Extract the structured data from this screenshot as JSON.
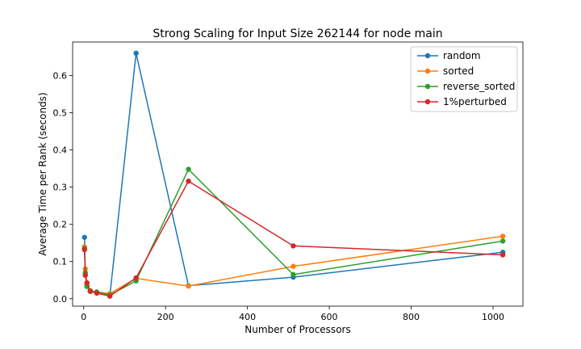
{
  "chart_data": {
    "type": "line",
    "title": "Strong Scaling for Input Size 262144 for node main",
    "xlabel": "Number of Processors",
    "ylabel": "Average Time per Rank (seconds)",
    "xlim": [
      -27,
      1073
    ],
    "ylim": [
      -0.02,
      0.69
    ],
    "xticks": [
      0,
      200,
      400,
      600,
      800,
      1000
    ],
    "yticks": [
      0.0,
      0.1,
      0.2,
      0.3,
      0.4,
      0.5,
      0.6
    ],
    "grid": false,
    "legend_position": "top-right",
    "series": [
      {
        "name": "random",
        "color": "#1f77b4",
        "x": [
          2,
          4,
          8,
          16,
          32,
          64,
          128,
          256,
          512,
          1024
        ],
        "y": [
          0.165,
          0.065,
          0.035,
          0.022,
          0.017,
          0.008,
          0.66,
          0.035,
          0.058,
          0.125
        ]
      },
      {
        "name": "sorted",
        "color": "#ff7f0e",
        "x": [
          2,
          4,
          8,
          16,
          32,
          64,
          128,
          256,
          512,
          1024
        ],
        "y": [
          0.14,
          0.08,
          0.04,
          0.022,
          0.018,
          0.014,
          0.055,
          0.034,
          0.087,
          0.168
        ]
      },
      {
        "name": "reverse_sorted",
        "color": "#2ca02c",
        "x": [
          2,
          4,
          8,
          16,
          32,
          64,
          128,
          256,
          512,
          1024
        ],
        "y": [
          0.135,
          0.07,
          0.033,
          0.02,
          0.018,
          0.01,
          0.048,
          0.348,
          0.065,
          0.155
        ]
      },
      {
        "name": "1%perturbed",
        "color": "#d62728",
        "x": [
          2,
          4,
          8,
          16,
          32,
          64,
          128,
          256,
          512,
          1024
        ],
        "y": [
          0.132,
          0.063,
          0.043,
          0.02,
          0.015,
          0.007,
          0.056,
          0.316,
          0.142,
          0.118
        ]
      }
    ]
  }
}
